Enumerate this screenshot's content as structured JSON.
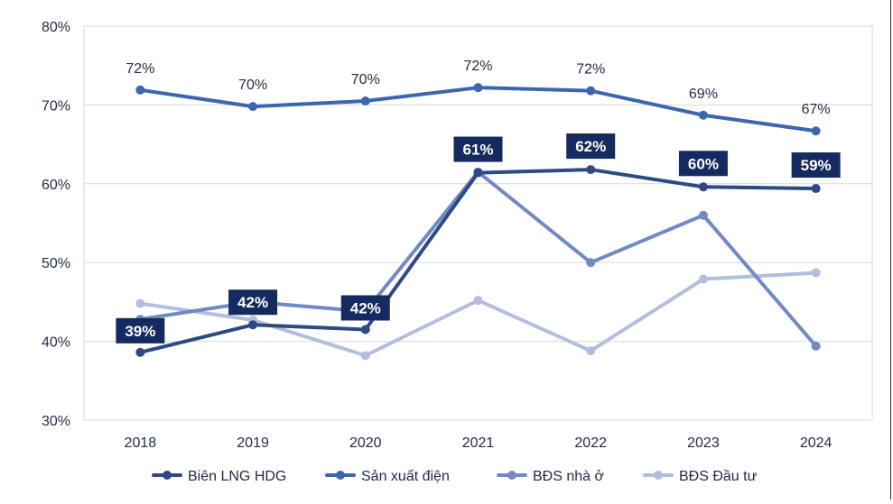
{
  "chart_data": {
    "type": "line",
    "categories": [
      "2018",
      "2019",
      "2020",
      "2021",
      "2022",
      "2023",
      "2024"
    ],
    "ylim": [
      30,
      80
    ],
    "yticks": [
      "30%",
      "40%",
      "50%",
      "60%",
      "70%",
      "80%"
    ],
    "grid": true,
    "legend_position": "bottom",
    "series": [
      {
        "name": "Biên LNG HDG",
        "color": "#2e4a82",
        "values": [
          38.6,
          42.1,
          41.5,
          61.4,
          61.8,
          59.6,
          59.4
        ],
        "labels": [
          "39%",
          "42%",
          "42%",
          "61%",
          "62%",
          "60%",
          "59%"
        ],
        "label_style": "boxed"
      },
      {
        "name": "Sản xuất điện",
        "color": "#3e66ad",
        "values": [
          71.9,
          69.8,
          70.5,
          72.2,
          71.8,
          68.7,
          66.7
        ],
        "labels": [
          "72%",
          "70%",
          "70%",
          "72%",
          "72%",
          "69%",
          "67%"
        ],
        "label_style": "plain"
      },
      {
        "name": "BĐS nhà ở",
        "color": "#7189c4",
        "values": [
          42.8,
          45.0,
          43.8,
          61.5,
          50.0,
          56.0,
          39.4
        ]
      },
      {
        "name": "BĐS Đầu tư",
        "color": "#b2bedd",
        "values": [
          44.8,
          42.7,
          38.2,
          45.2,
          38.8,
          47.9,
          48.7
        ]
      }
    ]
  }
}
